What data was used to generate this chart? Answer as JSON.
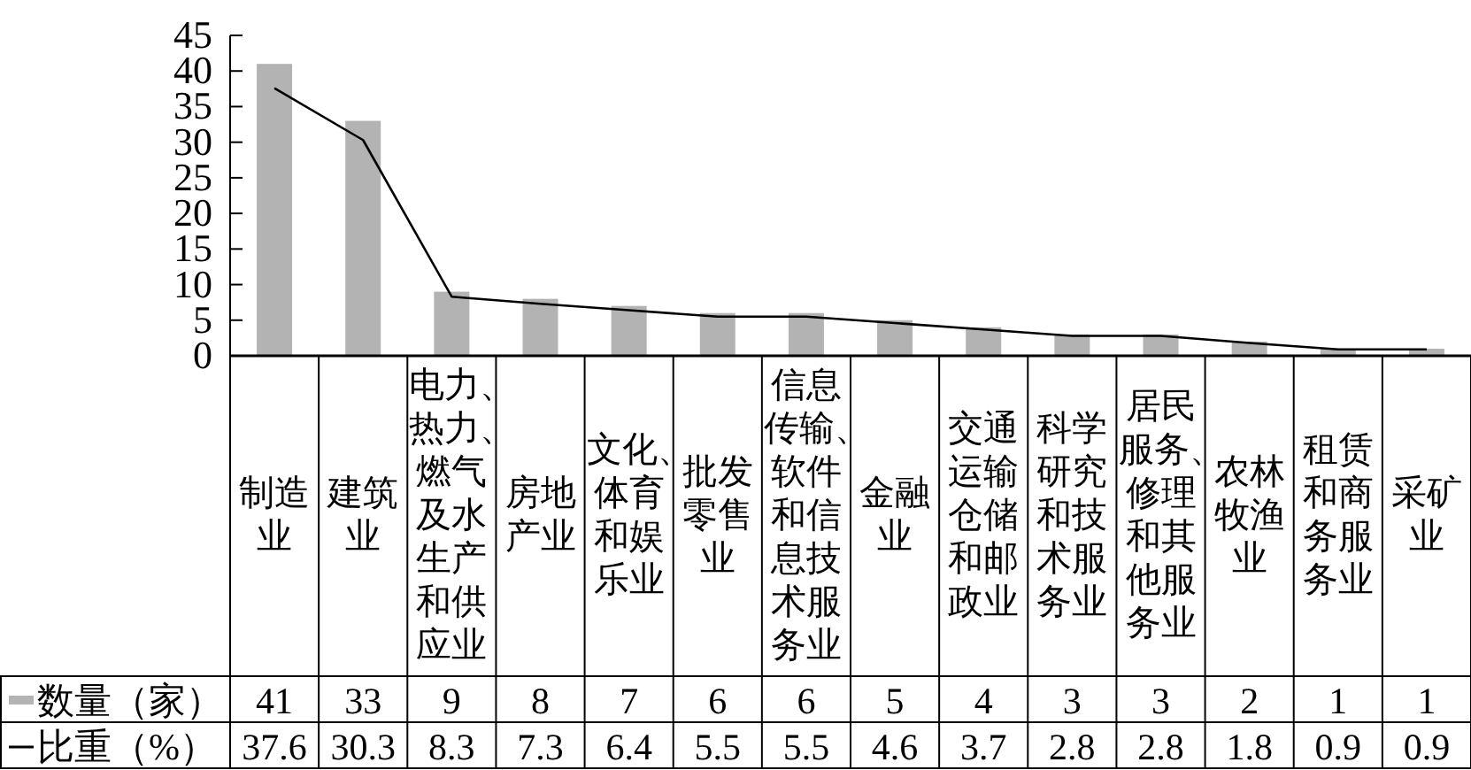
{
  "chart_data": {
    "type": "bar",
    "categories": [
      "制造业",
      "建筑业",
      "电力、热力、燃气及水生产和供应业",
      "房地产业",
      "文化、体育和娱乐业",
      "批发零售业",
      "信息传输、软件和信息技术服务业",
      "金融业",
      "交通运输仓储和邮政业",
      "科学研究和技术服务业",
      "居民服务、修理和其他服务业",
      "农林牧渔业",
      "租赁和商务服务业",
      "采矿业"
    ],
    "series": [
      {
        "name": "数量（家）",
        "color": "#b3b3b3",
        "values": [
          41,
          33,
          9,
          8,
          7,
          6,
          6,
          5,
          4,
          3,
          3,
          2,
          1,
          1
        ]
      },
      {
        "name": "比重（%）",
        "type": "line",
        "color": "#000000",
        "values": [
          37.6,
          30.3,
          8.3,
          7.3,
          6.4,
          5.5,
          5.5,
          4.6,
          3.7,
          2.8,
          2.8,
          1.8,
          0.9,
          0.9
        ]
      }
    ],
    "ylim": [
      0,
      45
    ],
    "yticks": [
      0,
      5,
      10,
      15,
      20,
      25,
      30,
      35,
      40,
      45
    ],
    "data_labels": true,
    "legend": "bottom",
    "marker": "none",
    "line_style": "solid"
  }
}
